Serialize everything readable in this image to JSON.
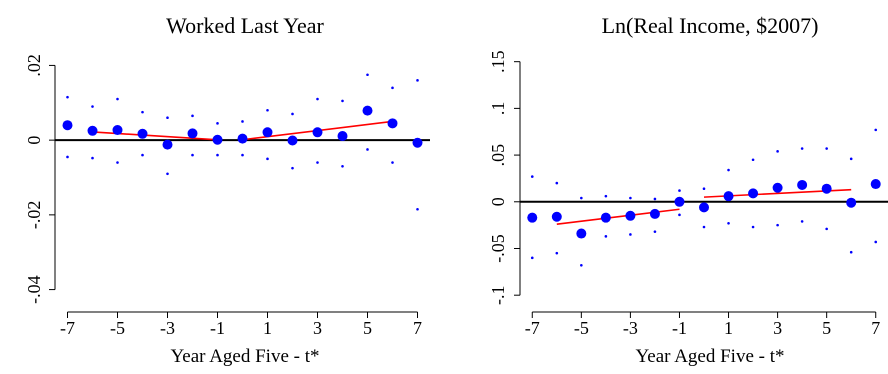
{
  "chart_data": [
    {
      "type": "scatter",
      "title": "Worked Last Year",
      "xlabel": "Year Aged Five - t*",
      "ylabel": "",
      "xlim": [
        -7.5,
        7.5
      ],
      "ylim": [
        -0.046,
        0.026
      ],
      "xticks": [
        -7,
        -5,
        -3,
        -1,
        1,
        3,
        5,
        7
      ],
      "xtick_labels": [
        "-7",
        "-5",
        "-3",
        "-1",
        "1",
        "3",
        "5",
        "7"
      ],
      "yticks": [
        -0.04,
        -0.02,
        0,
        0.02
      ],
      "ytick_labels": [
        "-.04",
        "-.02",
        "0",
        ".02"
      ],
      "reference_line_y": 0,
      "colors": {
        "points": "#0000ff",
        "fit": "#ff0000",
        "ci": "#0000ff",
        "zero": "#000000"
      },
      "x": [
        -7,
        -6,
        -5,
        -4,
        -3,
        -2,
        -1,
        0,
        1,
        2,
        3,
        4,
        5,
        6,
        7
      ],
      "estimates": [
        0.004,
        0.0025,
        0.0027,
        0.0017,
        -0.0012,
        0.0018,
        0.0001,
        0.0004,
        0.0021,
        -0.0001,
        0.0021,
        0.0011,
        0.0079,
        0.0045,
        -0.0007
      ],
      "ci_upper": [
        0.0115,
        0.009,
        0.011,
        0.0075,
        0.006,
        0.0065,
        0.0045,
        0.005,
        0.008,
        0.007,
        0.011,
        0.0105,
        0.0175,
        0.014,
        0.016
      ],
      "ci_lower": [
        -0.0045,
        -0.0048,
        -0.006,
        -0.004,
        -0.009,
        -0.004,
        -0.004,
        -0.004,
        -0.005,
        -0.0075,
        -0.006,
        -0.007,
        -0.0025,
        -0.006,
        -0.0185
      ],
      "fit_segments": [
        {
          "x": [
            -6,
            -1
          ],
          "y": [
            0.0022,
            0.0001
          ]
        },
        {
          "x": [
            0,
            6
          ],
          "y": [
            0.0001,
            0.005
          ]
        }
      ]
    },
    {
      "type": "scatter",
      "title": "Ln(Real Income, $2007)",
      "xlabel": "Year Aged Five - t*",
      "ylabel": "",
      "xlim": [
        -7.5,
        7.5
      ],
      "ylim": [
        -0.118,
        0.17
      ],
      "xticks": [
        -7,
        -5,
        -3,
        -1,
        1,
        3,
        5,
        7
      ],
      "xtick_labels": [
        "-7",
        "-5",
        "-3",
        "-1",
        "1",
        "3",
        "5",
        "7"
      ],
      "yticks": [
        -0.1,
        -0.05,
        0,
        0.05,
        0.1,
        0.15
      ],
      "ytick_labels": [
        "-.1",
        "-.05",
        "0",
        ".05",
        ".1",
        ".15"
      ],
      "reference_line_y": 0,
      "colors": {
        "points": "#0000ff",
        "fit": "#ff0000",
        "ci": "#0000ff",
        "zero": "#000000"
      },
      "x": [
        -7,
        -6,
        -5,
        -4,
        -3,
        -2,
        -1,
        0,
        1,
        2,
        3,
        4,
        5,
        6,
        7
      ],
      "estimates": [
        -0.017,
        -0.016,
        -0.034,
        -0.017,
        -0.015,
        -0.013,
        0,
        -0.006,
        0.006,
        0.009,
        0.015,
        0.018,
        0.014,
        -0.001,
        0.019
      ],
      "ci_upper": [
        0.027,
        0.02,
        0.004,
        0.006,
        0.004,
        0.003,
        0.012,
        0.014,
        0.034,
        0.045,
        0.054,
        0.057,
        0.057,
        0.046,
        0.077
      ],
      "ci_lower": [
        -0.06,
        -0.055,
        -0.068,
        -0.037,
        -0.035,
        -0.032,
        -0.014,
        -0.027,
        -0.023,
        -0.027,
        -0.025,
        -0.021,
        -0.029,
        -0.054,
        -0.043
      ],
      "fit_segments": [
        {
          "x": [
            -6,
            -1
          ],
          "y": [
            -0.024,
            -0.008
          ]
        },
        {
          "x": [
            0,
            6
          ],
          "y": [
            0.005,
            0.013
          ]
        }
      ]
    }
  ]
}
